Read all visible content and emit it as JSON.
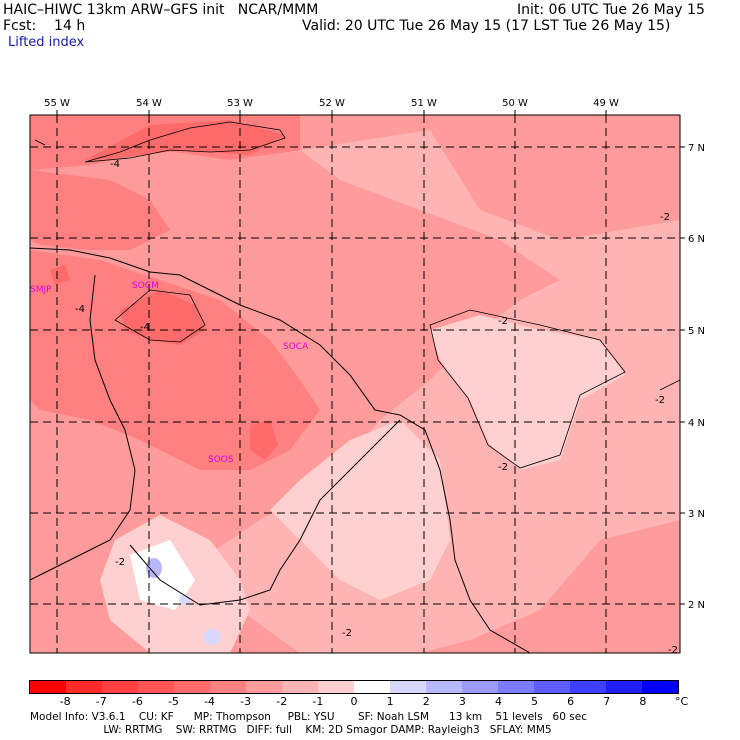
{
  "header": {
    "title_left": "HAIC–HIWC 13km ARW–GFS init   NCAR/MMM",
    "fcst": "Fcst:    14 h",
    "field": "Lifted index",
    "init": "Init: 06 UTC Tue 26 May 15",
    "valid": "Valid: 20 UTC Tue 26 May 15 (17 LST Tue 26 May 15)"
  },
  "map": {
    "lon_labels": [
      "55 W",
      "54 W",
      "53 W",
      "52 W",
      "51 W",
      "50 W",
      "49 W"
    ],
    "lat_labels": [
      "7 N",
      "6 N",
      "5 N",
      "4 N",
      "3 N",
      "2 N"
    ],
    "stations": [
      "SMJP",
      "SOCM",
      "SOCA",
      "SOOS"
    ],
    "contour_labels": [
      "-4",
      "-4",
      "-4",
      "-2",
      "-2",
      "-2",
      "-2",
      "-2",
      "-2",
      "-2"
    ]
  },
  "colorbar": {
    "ticks": [
      "-8",
      "-7",
      "-6",
      "-5",
      "-4",
      "-3",
      "-2",
      "-1",
      "0",
      "1",
      "2",
      "3",
      "4",
      "5",
      "6",
      "7",
      "8"
    ],
    "unit": "°C",
    "colors": [
      "#ff0000",
      "#ff2a2a",
      "#ff4040",
      "#ff5555",
      "#ff6a6a",
      "#ff8080",
      "#ff9b9b",
      "#ffb4b4",
      "#ffd0d0",
      "#ffffff",
      "#d8d8ff",
      "#b8b8ff",
      "#9a9aff",
      "#7c7cff",
      "#5e5eff",
      "#3f3fff",
      "#2020ff",
      "#0000ff"
    ]
  },
  "footer": {
    "line1": "Model Info: V3.6.1    CU: KF      MP: Thompson     PBL: YSU       SF: Noah LSM      13 km    51 levels   60 sec",
    "line2": "                      LW: RRTMG    SW: RRTMG   DIFF: full    KM: 2D Smagor DAMP: Rayleigh3   SFLAY: MM5"
  }
}
